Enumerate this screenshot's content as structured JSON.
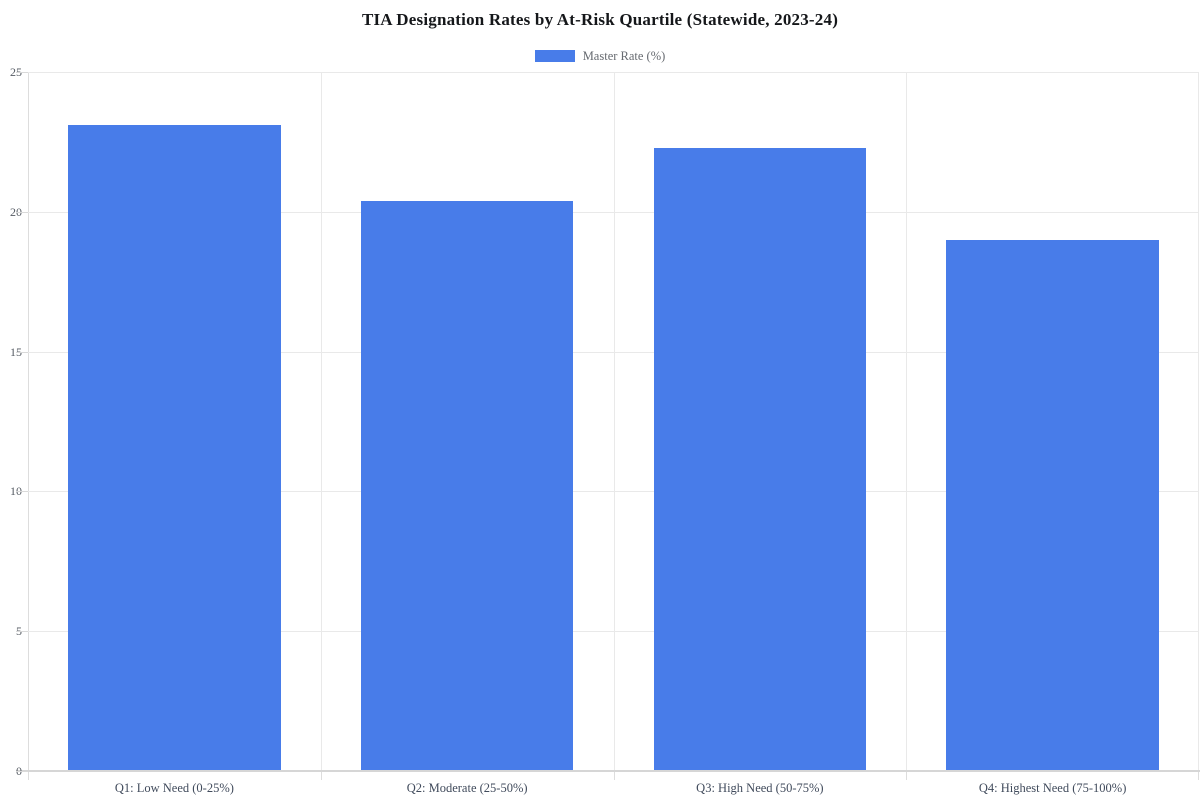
{
  "chart_data": {
    "type": "bar",
    "title": "TIA Designation Rates by At-Risk Quartile (Statewide, 2023-24)",
    "categories": [
      "Q1: Low Need (0-25%)",
      "Q2: Moderate (25-50%)",
      "Q3: High Need (50-75%)",
      "Q4: Highest Need (75-100%)"
    ],
    "series": [
      {
        "name": "Master Rate (%)",
        "values": [
          23.1,
          20.4,
          22.3,
          19.0
        ],
        "color": "#487ce9"
      }
    ],
    "xlabel": "",
    "ylabel": "",
    "ylim": [
      0,
      25
    ],
    "y_ticks": [
      0,
      5,
      10,
      15,
      20,
      25
    ],
    "grid": true,
    "legend_position": "top-center"
  },
  "colors": {
    "bar": "#487ce9",
    "grid_line": "#e9e9e9",
    "axis_line": "#d6d6d6",
    "title_text": "#15171a",
    "axis_label_text": "#414b5c",
    "legend_text": "#666a70"
  }
}
